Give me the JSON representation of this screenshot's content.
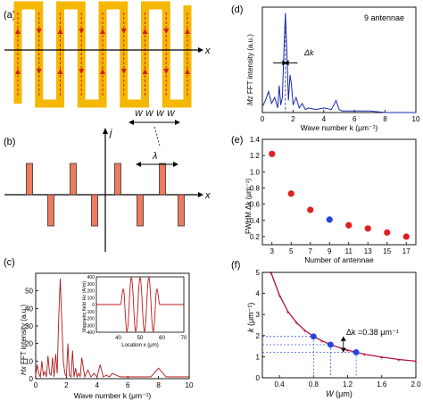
{
  "panels": {
    "a": {
      "label": "(a)",
      "axis_x": "x",
      "width_labels": [
        "W",
        "W",
        "W",
        "W"
      ]
    },
    "b": {
      "label": "(b)",
      "axis_x": "x",
      "axis_y": "j",
      "lambda": "λ"
    },
    "c": {
      "label": "(c)"
    },
    "d": {
      "label": "(d)",
      "annotation": "9 antennae",
      "dk": "Δk"
    },
    "e": {
      "label": "(e)"
    },
    "f": {
      "label": "(f)",
      "annotation": "Δk =0.38 μm⁻¹"
    }
  },
  "chart_data": [
    {
      "id": "c",
      "type": "line",
      "ylabel_italic": "Hx",
      "ylabel": " FFT intensity (a.u.)",
      "xlabel": "Wave number k (μm⁻¹)",
      "xlim": [
        0,
        10
      ],
      "xticks": [
        "0",
        "2",
        "4",
        "6",
        "8",
        "10"
      ],
      "ylim": [
        0,
        60
      ],
      "yticks": [
        "0",
        "10",
        "20",
        "30",
        "40",
        "50"
      ],
      "series": [
        {
          "x": [
            0,
            0.1,
            0.2,
            0.3,
            0.4,
            0.5,
            0.6,
            0.7,
            0.8,
            0.9,
            1.0,
            1.1,
            1.2,
            1.3,
            1.4,
            1.5,
            1.6,
            1.7,
            1.8,
            1.9,
            2.0,
            2.1,
            2.2,
            2.3,
            2.4,
            2.5,
            2.6,
            2.7,
            2.8,
            2.9,
            3.0,
            3.2,
            3.4,
            3.6,
            3.8,
            4.0,
            4.2,
            4.4,
            4.6,
            4.8,
            5.0,
            5.5,
            6.0,
            6.5,
            7.0,
            7.5,
            8.0,
            8.5,
            9.0,
            9.5,
            10.0
          ],
          "y": [
            2,
            8,
            3,
            1,
            10,
            2,
            4,
            1,
            13,
            3,
            2,
            12,
            1,
            14,
            3,
            35,
            57,
            33,
            10,
            3,
            1,
            20,
            2,
            1,
            16,
            1,
            6,
            1,
            3,
            1,
            12,
            1,
            5,
            1,
            3,
            1,
            8,
            1,
            2,
            1,
            3,
            1,
            1,
            1,
            1,
            1,
            6,
            1,
            1,
            1,
            1
          ]
        }
      ],
      "inset": {
        "type": "line",
        "ylabel": "Magnetic field Hz (A/m)",
        "xlabel": "Location x (μm)",
        "xlim": [
          30,
          70
        ],
        "xticks": [
          "40",
          "50",
          "60",
          "70"
        ],
        "ylim": [
          -400,
          400
        ],
        "yticks": [
          "-400",
          "-300",
          "-200",
          "-100",
          "0",
          "100",
          "200",
          "300",
          "400"
        ],
        "cycles": 4,
        "x_start": 42,
        "x_end": 58
      }
    },
    {
      "id": "d",
      "type": "line",
      "ylabel_italic": "Mz",
      "ylabel": " FFT intensity (a.u.)",
      "xlabel": "Wave number k (μm⁻¹)",
      "xlim": [
        0,
        10
      ],
      "xticks": [
        "0",
        "2",
        "4",
        "6",
        "8",
        "10"
      ],
      "ylim": [
        0,
        70
      ],
      "series": [
        {
          "x": [
            0,
            0.2,
            0.4,
            0.6,
            0.8,
            1.0,
            1.1,
            1.2,
            1.3,
            1.4,
            1.5,
            1.6,
            1.7,
            1.8,
            1.9,
            2.0,
            2.2,
            2.4,
            2.6,
            2.8,
            3.0,
            3.5,
            4.0,
            4.5,
            4.8,
            5.0,
            5.2,
            5.5,
            6.0,
            7.0,
            8.0,
            9.0,
            10.0
          ],
          "y": [
            4,
            8,
            14,
            6,
            10,
            3,
            18,
            5,
            10,
            40,
            66,
            40,
            8,
            25,
            18,
            5,
            10,
            3,
            6,
            2,
            3,
            2,
            3,
            2,
            8,
            2,
            1,
            1,
            1,
            1,
            0,
            0,
            0
          ]
        }
      ]
    },
    {
      "id": "e",
      "type": "scatter",
      "ylabel": "FWHM Δk (μm⁻¹)",
      "xlabel": "Number of antennae",
      "xlim": [
        2,
        18
      ],
      "xticks": [
        "3",
        "5",
        "7",
        "9",
        "11",
        "13",
        "15",
        "17"
      ],
      "ylim": [
        0.1,
        1.4
      ],
      "yticks": [
        "0.2",
        "0.4",
        "0.6",
        "0.8",
        "1.0",
        "1.2",
        "1.4"
      ],
      "series": [
        {
          "x": [
            3,
            5,
            7,
            11,
            13,
            15,
            17
          ],
          "y": [
            1.22,
            0.73,
            0.53,
            0.34,
            0.3,
            0.25,
            0.2
          ],
          "color": "#e02020"
        },
        {
          "x": [
            9
          ],
          "y": [
            0.41
          ],
          "color": "#2244dd"
        }
      ]
    },
    {
      "id": "f",
      "type": "line",
      "ylabel": "k (μm⁻¹)",
      "xlabel": "W (μm)",
      "xlim": [
        0.2,
        2.0
      ],
      "xticks": [
        "0.4",
        "0.8",
        "1.2",
        "1.6",
        "2.0"
      ],
      "ylim": [
        0,
        5
      ],
      "yticks": [
        "0",
        "1",
        "2",
        "3",
        "4",
        "5"
      ],
      "curve_color": "#b0104a",
      "series": [
        {
          "name": "curve",
          "x": [
            0.3,
            0.4,
            0.5,
            0.6,
            0.7,
            0.8,
            0.9,
            1.0,
            1.2,
            1.4,
            1.6,
            1.8,
            2.0
          ],
          "y": [
            5.0,
            3.93,
            3.14,
            2.62,
            2.24,
            1.96,
            1.75,
            1.57,
            1.31,
            1.12,
            0.98,
            0.87,
            0.79
          ]
        },
        {
          "name": "points",
          "x": [
            0.8,
            1.0,
            1.3
          ],
          "y": [
            1.96,
            1.57,
            1.21
          ],
          "color": "#2244dd"
        }
      ]
    }
  ]
}
